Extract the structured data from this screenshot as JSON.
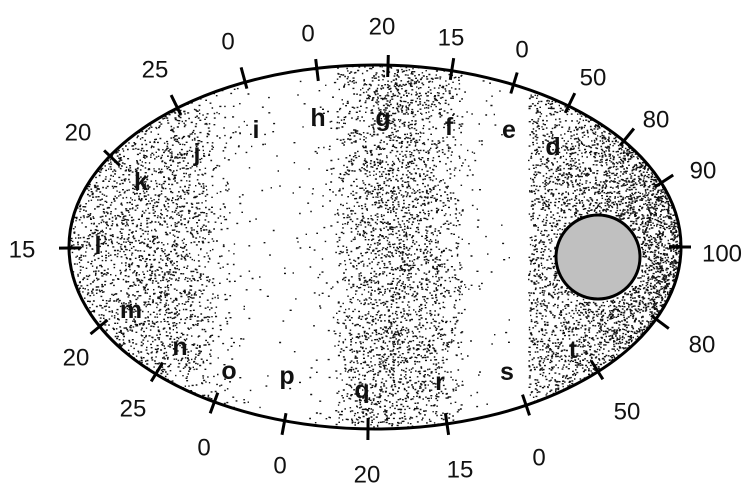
{
  "colors": {
    "ink": "#000000",
    "stipple": "#111111",
    "core_fill": "#c0c0c0",
    "background": "#ffffff"
  },
  "ticks": [
    {
      "letter": "i",
      "value": "0",
      "density": 0
    },
    {
      "letter": "h",
      "value": "0",
      "density": 0
    },
    {
      "letter": "g",
      "value": "20",
      "density": 20
    },
    {
      "letter": "f",
      "value": "15",
      "density": 15
    },
    {
      "letter": "e",
      "value": "0",
      "density": 0
    },
    {
      "letter": "d",
      "value": "50",
      "density": 50
    },
    {
      "letter": "",
      "value": "80",
      "density": 80
    },
    {
      "letter": "",
      "value": "90",
      "density": 90
    },
    {
      "letter": "",
      "value": "100",
      "density": 100
    },
    {
      "letter": "",
      "value": "80",
      "density": 80
    },
    {
      "letter": "t",
      "value": "50",
      "density": 50
    },
    {
      "letter": "s",
      "value": "0",
      "density": 0
    },
    {
      "letter": "r",
      "value": "15",
      "density": 15
    },
    {
      "letter": "q",
      "value": "20",
      "density": 20
    },
    {
      "letter": "p",
      "value": "0",
      "density": 0
    },
    {
      "letter": "o",
      "value": "0",
      "density": 0
    },
    {
      "letter": "n",
      "value": "25",
      "density": 25
    },
    {
      "letter": "m",
      "value": "20",
      "density": 20
    },
    {
      "letter": "l",
      "value": "15",
      "density": 15
    },
    {
      "letter": "k",
      "value": "20",
      "density": 20
    },
    {
      "letter": "j",
      "value": "25",
      "density": 25
    }
  ]
}
